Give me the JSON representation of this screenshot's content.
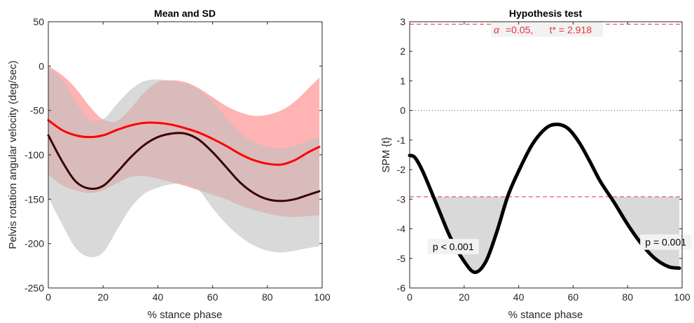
{
  "chart_data": [
    {
      "type": "line",
      "title": "Mean and SD",
      "xlabel": "% stance phase",
      "ylabel": "Pelvis rotation angular velocity (deg/sec)",
      "xlim": [
        0,
        100
      ],
      "ylim": [
        -250,
        50
      ],
      "xticks": [
        0,
        20,
        40,
        60,
        80,
        100
      ],
      "yticks": [
        50,
        0,
        -50,
        -100,
        -150,
        -200,
        -250
      ],
      "grid": false,
      "series": [
        {
          "color": "#ff0000",
          "band_color": "#ffb3b3",
          "x": [
            0,
            5,
            10,
            15,
            20,
            25,
            30,
            35,
            40,
            45,
            50,
            55,
            60,
            65,
            70,
            75,
            80,
            85,
            90,
            95,
            99
          ],
          "mean": [
            -61,
            -72,
            -78,
            -80,
            -78,
            -72,
            -67,
            -64,
            -64,
            -66,
            -70,
            -75,
            -82,
            -90,
            -99,
            -106,
            -110,
            -111,
            -106,
            -97,
            -91
          ],
          "upper": [
            0,
            -10,
            -25,
            -45,
            -60,
            -62,
            -48,
            -30,
            -18,
            -16,
            -18,
            -25,
            -35,
            -45,
            -52,
            -56,
            -55,
            -50,
            -40,
            -25,
            -13
          ],
          "lower": [
            -122,
            -134,
            -140,
            -143,
            -140,
            -132,
            -125,
            -124,
            -127,
            -131,
            -135,
            -140,
            -145,
            -150,
            -157,
            -162,
            -166,
            -169,
            -170,
            -169,
            -168
          ]
        },
        {
          "color": "#3a0000",
          "band_color": "#bfbfbf",
          "x": [
            0,
            5,
            10,
            15,
            20,
            25,
            30,
            35,
            40,
            45,
            50,
            55,
            60,
            65,
            70,
            75,
            80,
            85,
            90,
            95,
            99
          ],
          "mean": [
            -78,
            -107,
            -130,
            -138,
            -135,
            -120,
            -103,
            -89,
            -80,
            -76,
            -76,
            -83,
            -97,
            -114,
            -131,
            -143,
            -150,
            -152,
            -150,
            -145,
            -141
          ],
          "upper": [
            -2,
            -15,
            -40,
            -60,
            -60,
            -43,
            -27,
            -17,
            -15,
            -17,
            -20,
            -27,
            -40,
            -58,
            -75,
            -86,
            -91,
            -93,
            -90,
            -84,
            -80
          ],
          "lower": [
            -148,
            -178,
            -205,
            -215,
            -210,
            -185,
            -160,
            -144,
            -137,
            -133,
            -133,
            -140,
            -160,
            -178,
            -192,
            -202,
            -208,
            -210,
            -208,
            -205,
            -203
          ]
        }
      ]
    },
    {
      "type": "line",
      "title": "Hypothesis test",
      "xlabel": "% stance phase",
      "ylabel": "SPM {t}",
      "xlim": [
        0,
        100
      ],
      "ylim": [
        -6,
        3
      ],
      "xticks": [
        0,
        20,
        40,
        60,
        80,
        100
      ],
      "yticks": [
        3,
        2,
        1,
        0,
        -1,
        -2,
        -3,
        -4,
        -5,
        -6
      ],
      "grid": false,
      "alpha_label": "α",
      "threshold_label": "=0.05,      t* = 2.918",
      "threshold": 2.918,
      "threshold_color": "#e8343f",
      "zero_line": 0,
      "series": [
        {
          "color": "#000000",
          "x": [
            0,
            2,
            5,
            10,
            15,
            20,
            24,
            28,
            32,
            36,
            40,
            45,
            50,
            54,
            58,
            62,
            66,
            70,
            75,
            80,
            85,
            90,
            95,
            99
          ],
          "y": [
            -1.52,
            -1.6,
            -2.1,
            -3.2,
            -4.3,
            -5.1,
            -5.47,
            -5.1,
            -4.1,
            -2.9,
            -2.05,
            -1.15,
            -0.6,
            -0.47,
            -0.6,
            -1.05,
            -1.7,
            -2.4,
            -3.1,
            -3.85,
            -4.5,
            -5.0,
            -5.28,
            -5.33
          ]
        }
      ],
      "clusters": [
        {
          "p_label": "p < 0.001",
          "x": [
            9,
            10,
            15,
            20,
            24,
            28,
            32,
            35.8
          ]
        },
        {
          "p_label": "p = 0.001",
          "x": [
            74,
            75,
            80,
            85,
            90,
            95,
            99
          ]
        }
      ]
    }
  ]
}
